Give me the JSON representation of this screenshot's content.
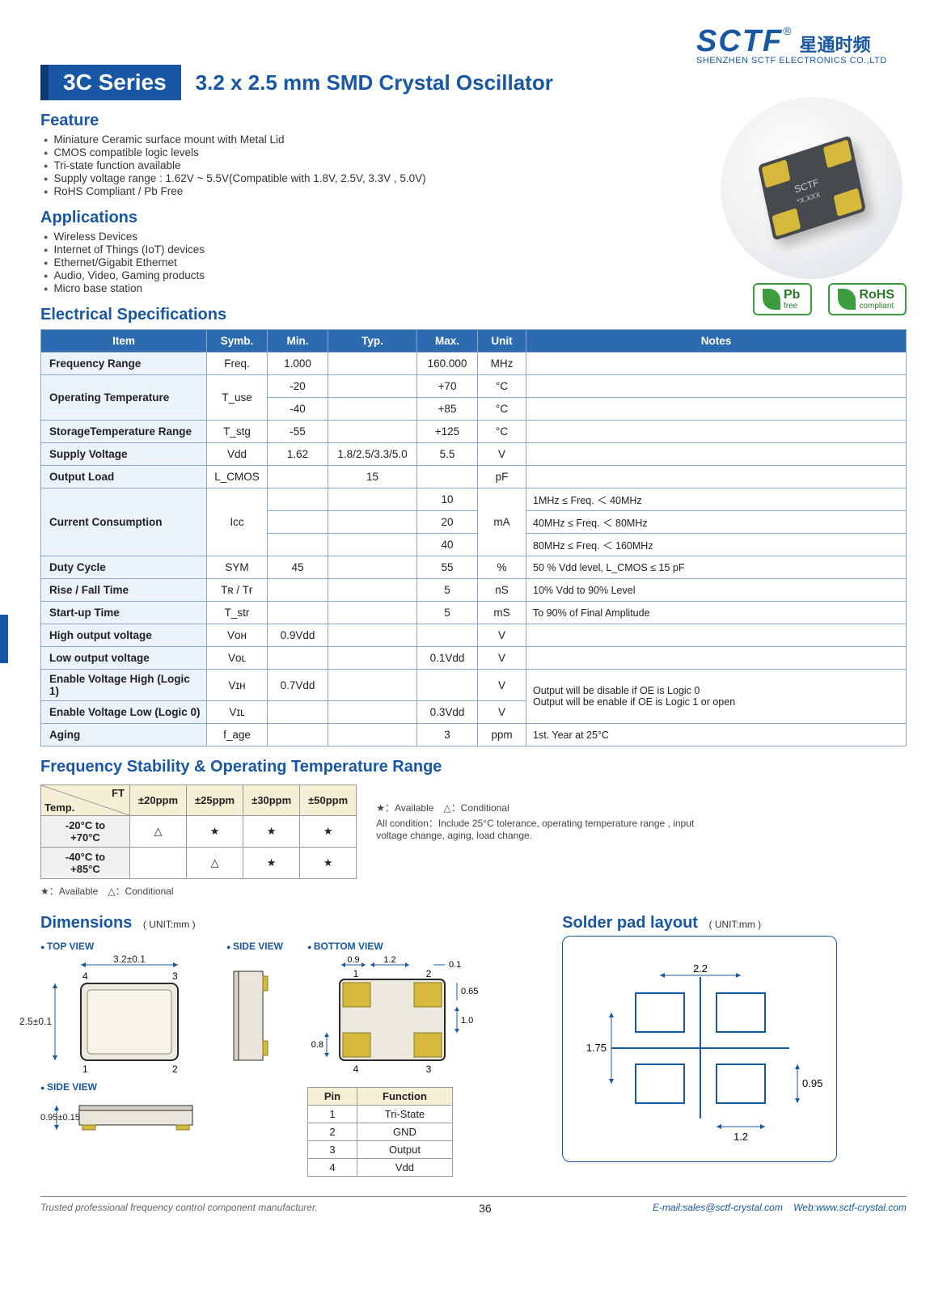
{
  "logo": {
    "brand": "SCTF",
    "reg": "®",
    "cn": "星通时频",
    "sub": "SHENZHEN SCTF ELECTRONICS CO.,LTD"
  },
  "series": {
    "badge": "3C Series",
    "title": "3.2 x 2.5 mm SMD Crystal Oscillator"
  },
  "chip_label_1": "SCTF",
  "chip_label_2": "*X.XXX",
  "feature": {
    "heading": "Feature",
    "items": [
      "Miniature Ceramic surface mount with Metal Lid",
      "CMOS compatible logic levels",
      "Tri-state function available",
      "Supply voltage range : 1.62V ~ 5.5V(Compatible with 1.8V, 2.5V, 3.3V , 5.0V)",
      "RoHS Compliant / Pb Free"
    ]
  },
  "applications": {
    "heading": "Applications",
    "items": [
      "Wireless Devices",
      "Internet of Things (IoT) devices",
      "Ethernet/Gigabit Ethernet",
      "Audio, Video, Gaming products",
      "Micro base station"
    ]
  },
  "cert": {
    "pb_bold": "Pb",
    "pb_sub": "free",
    "rohs_bold": "RoHS",
    "rohs_sub": "compliant"
  },
  "elec": {
    "heading": "Electrical Specifications",
    "headers": [
      "Item",
      "Symb.",
      "Min.",
      "Typ.",
      "Max.",
      "Unit",
      "Notes"
    ]
  },
  "spec_rows": {
    "freq": {
      "item": "Frequency Range",
      "symb": "Freq.",
      "min": "1.000",
      "typ": "",
      "max": "160.000",
      "unit": "MHz",
      "notes": ""
    },
    "optemp": {
      "item": "Operating Temperature",
      "symb": "T_use",
      "r1": {
        "min": "-20",
        "typ": "",
        "max": "+70",
        "unit": "°C",
        "notes": ""
      },
      "r2": {
        "min": "-40",
        "typ": "",
        "max": "+85",
        "unit": "°C",
        "notes": ""
      }
    },
    "stg": {
      "item": "StorageTemperature Range",
      "symb": "T_stg",
      "min": "-55",
      "typ": "",
      "max": "+125",
      "unit": "°C",
      "notes": ""
    },
    "vdd": {
      "item": "Supply Voltage",
      "symb": "Vdd",
      "min": "1.62",
      "typ": "1.8/2.5/3.3/5.0",
      "max": "5.5",
      "unit": "V",
      "notes": ""
    },
    "load": {
      "item": "Output Load",
      "symb": "L_CMOS",
      "min": "",
      "typ": "15",
      "max": "",
      "unit": "pF",
      "notes": ""
    },
    "icc": {
      "item": "Current Consumption",
      "symb": "Icc",
      "unit": "mA",
      "r1": {
        "max": "10",
        "notes": "1MHz ≤ Freq. ＜ 40MHz"
      },
      "r2": {
        "max": "20",
        "notes": "40MHz ≤ Freq. ＜ 80MHz"
      },
      "r3": {
        "max": "40",
        "notes": "80MHz ≤ Freq. ＜ 160MHz"
      }
    },
    "duty": {
      "item": "Duty Cycle",
      "symb": "SYM",
      "min": "45",
      "typ": "",
      "max": "55",
      "unit": "%",
      "notes": "50 % Vdd level, L_CMOS ≤ 15 pF"
    },
    "rise": {
      "item": "Rise / Fall Time",
      "symb": "Tʀ / Tғ",
      "min": "",
      "typ": "",
      "max": "5",
      "unit": "nS",
      "notes": "10% Vdd to 90% Level"
    },
    "start": {
      "item": "Start-up Time",
      "symb": "T_str",
      "min": "",
      "typ": "",
      "max": "5",
      "unit": "mS",
      "notes": "To 90% of Final Amplitude"
    },
    "voh": {
      "item": "High output voltage",
      "symb": "Vᴏн",
      "min": "0.9Vdd",
      "typ": "",
      "max": "",
      "unit": "V",
      "notes": ""
    },
    "vol": {
      "item": "Low output voltage",
      "symb": "Vᴏʟ",
      "min": "",
      "typ": "",
      "max": "0.1Vdd",
      "unit": "V",
      "notes": ""
    },
    "vih": {
      "item": "Enable Voltage High (Logic 1)",
      "symb": "Vɪн",
      "min": "0.7Vdd",
      "typ": "",
      "max": "",
      "unit": "V"
    },
    "vil": {
      "item": "Enable Voltage Low (Logic 0)",
      "symb": "Vɪʟ",
      "min": "",
      "typ": "",
      "max": "0.3Vdd",
      "unit": "V"
    },
    "enable_notes": "Output will be disable if OE is Logic 0\nOutput will be enable if OE is Logic 1 or open",
    "aging": {
      "item": "Aging",
      "symb": "f_age",
      "min": "",
      "typ": "",
      "max": "3",
      "unit": "ppm",
      "notes": "1st. Year at 25°C"
    }
  },
  "freqstab": {
    "heading": "Frequency Stability & Operating Temperature Range",
    "diag_ft": "FT",
    "diag_temp": "Temp.",
    "cols": [
      "±20ppm",
      "±25ppm",
      "±30ppm",
      "±50ppm"
    ],
    "rows": [
      {
        "label": "-20°C to +70°C",
        "cells": [
          "△",
          "★",
          "★",
          "★"
        ]
      },
      {
        "label": "-40°C to +85°C",
        "cells": [
          "",
          "△",
          "★",
          "★"
        ]
      }
    ],
    "legend_below": "★：Available △：Conditional",
    "legend_right_top": "★：Available △：Conditional",
    "legend_right_note": "All condition：Include 25°C tolerance, operating temperature range , input voltage change, aging, load change."
  },
  "dimensions": {
    "heading": "Dimensions",
    "unit": "( UNIT:mm )",
    "top_view": "TOP VIEW",
    "side_view": "SIDE VIEW",
    "bottom_view": "BOTTOM VIEW",
    "w": "3.2±0.1",
    "h": "2.5±0.1",
    "thk": "0.95±0.15",
    "b09": "0.9",
    "b12": "1.2",
    "b01": "0.1",
    "b065": "0.65",
    "b08": "0.8",
    "b10": "1.0",
    "pn1": "1",
    "pn2": "2",
    "pn3": "3",
    "pn4": "4",
    "colors": {
      "outline": "#1857a4",
      "metal": "#d7d3c4",
      "gold": "#d6b93a",
      "border": "#2b2b2b"
    }
  },
  "pins": {
    "headers": [
      "Pin",
      "Function"
    ],
    "rows": [
      [
        "1",
        "Tri-State"
      ],
      [
        "2",
        "GND"
      ],
      [
        "3",
        "Output"
      ],
      [
        "4",
        "Vdd"
      ]
    ]
  },
  "solder": {
    "heading": "Solder pad layout",
    "unit": "( UNIT:mm )",
    "d22": "2.2",
    "d175": "1.75",
    "d12": "1.2",
    "d095": "0.95",
    "colors": {
      "outline": "#1857a4"
    }
  },
  "footer": {
    "left": "Trusted professional frequency control component manufacturer.",
    "page": "36",
    "email_label": "E-mail:",
    "email": "sales@sctf-crystal.com",
    "web_label": "Web:",
    "web": "www.sctf-crystal.com"
  }
}
